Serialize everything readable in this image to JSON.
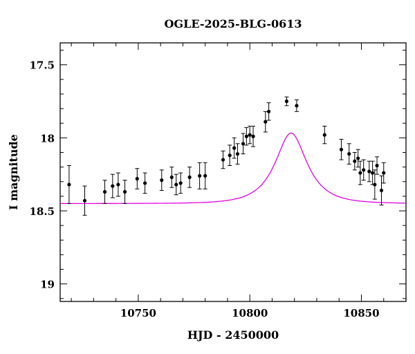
{
  "chart_data": {
    "type": "scatter",
    "title": "OGLE-2025-BLG-0613",
    "xlabel": "HJD - 2450000",
    "ylabel": "I magnitude",
    "xlim": [
      10715,
      10870
    ],
    "ylim": [
      19.12,
      17.35
    ],
    "y_inverted": true,
    "x_ticks": [
      10750,
      10800,
      10850
    ],
    "x_tick_labels": [
      "10750",
      "10800",
      "10850"
    ],
    "y_ticks": [
      17.5,
      18,
      18.5,
      19
    ],
    "y_tick_labels": [
      "17.5",
      "18",
      "18.5",
      "19"
    ],
    "grid": false,
    "colors": {
      "points": "#000000",
      "model": "#e600e6"
    },
    "series": [
      {
        "type": "scatter_errorbar",
        "points": [
          {
            "x": 10719.0,
            "y": 18.32,
            "err": 0.13
          },
          {
            "x": 10726.0,
            "y": 18.43,
            "err": 0.1
          },
          {
            "x": 10735.0,
            "y": 18.37,
            "err": 0.08
          },
          {
            "x": 10738.5,
            "y": 18.33,
            "err": 0.08
          },
          {
            "x": 10741.0,
            "y": 18.32,
            "err": 0.08
          },
          {
            "x": 10744.0,
            "y": 18.37,
            "err": 0.08
          },
          {
            "x": 10749.5,
            "y": 18.28,
            "err": 0.07
          },
          {
            "x": 10753.0,
            "y": 18.31,
            "err": 0.07
          },
          {
            "x": 10760.5,
            "y": 18.29,
            "err": 0.07
          },
          {
            "x": 10765.0,
            "y": 18.27,
            "err": 0.07
          },
          {
            "x": 10767.0,
            "y": 18.32,
            "err": 0.07
          },
          {
            "x": 10769.0,
            "y": 18.31,
            "err": 0.07
          },
          {
            "x": 10773.0,
            "y": 18.27,
            "err": 0.07
          },
          {
            "x": 10777.5,
            "y": 18.26,
            "err": 0.09
          },
          {
            "x": 10780.0,
            "y": 18.26,
            "err": 0.09
          },
          {
            "x": 10788.0,
            "y": 18.15,
            "err": 0.06
          },
          {
            "x": 10791.0,
            "y": 18.12,
            "err": 0.07
          },
          {
            "x": 10793.0,
            "y": 18.07,
            "err": 0.07
          },
          {
            "x": 10794.5,
            "y": 18.11,
            "err": 0.07
          },
          {
            "x": 10797.0,
            "y": 18.04,
            "err": 0.07
          },
          {
            "x": 10798.5,
            "y": 17.99,
            "err": 0.06
          },
          {
            "x": 10800.0,
            "y": 17.98,
            "err": 0.06
          },
          {
            "x": 10801.5,
            "y": 17.99,
            "err": 0.07
          },
          {
            "x": 10807.0,
            "y": 17.89,
            "err": 0.07
          },
          {
            "x": 10808.5,
            "y": 17.82,
            "err": 0.06
          },
          {
            "x": 10816.5,
            "y": 17.75,
            "err": 0.03
          },
          {
            "x": 10821.0,
            "y": 17.78,
            "err": 0.04
          },
          {
            "x": 10833.5,
            "y": 17.98,
            "err": 0.06
          },
          {
            "x": 10841.0,
            "y": 18.08,
            "err": 0.07
          },
          {
            "x": 10844.5,
            "y": 18.11,
            "err": 0.07
          },
          {
            "x": 10847.0,
            "y": 18.16,
            "err": 0.06
          },
          {
            "x": 10848.5,
            "y": 18.14,
            "err": 0.06
          },
          {
            "x": 10849.5,
            "y": 18.24,
            "err": 0.08
          },
          {
            "x": 10851.0,
            "y": 18.22,
            "err": 0.07
          },
          {
            "x": 10853.5,
            "y": 18.23,
            "err": 0.07
          },
          {
            "x": 10855.0,
            "y": 18.24,
            "err": 0.08
          },
          {
            "x": 10856.0,
            "y": 18.32,
            "err": 0.1
          },
          {
            "x": 10857.0,
            "y": 18.19,
            "err": 0.06
          },
          {
            "x": 10859.0,
            "y": 18.36,
            "err": 0.1
          },
          {
            "x": 10860.0,
            "y": 18.24,
            "err": 0.07
          }
        ]
      },
      {
        "type": "line",
        "model": {
          "t0": 10818.5,
          "tE": 12.4,
          "u0": 0.55,
          "base_mag": 18.45,
          "fs": 0.55
        }
      }
    ]
  }
}
